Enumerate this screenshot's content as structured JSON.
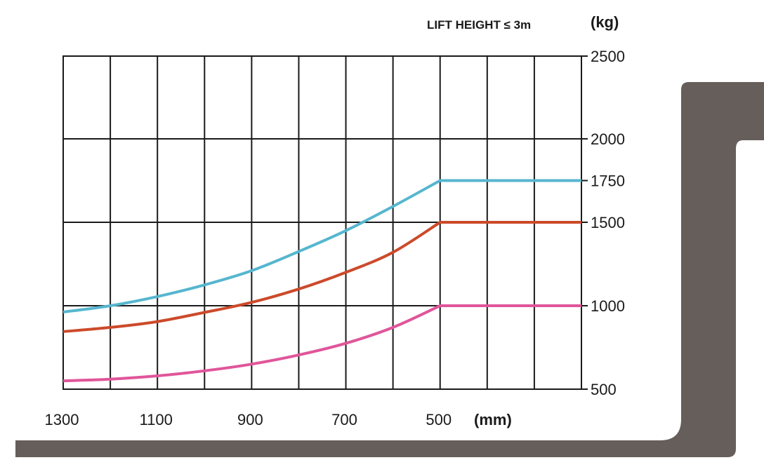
{
  "chart_data": {
    "type": "line",
    "title": "LIFT HEIGHT ≤ 3m",
    "ylabel": "(kg)",
    "xlabel": "(mm)",
    "xlim": [
      1300,
      200
    ],
    "ylim": [
      500,
      2500
    ],
    "y_scale": "piecewise",
    "y_ticks": [
      "500",
      "1000",
      "1500",
      "1750",
      "2000",
      "2500"
    ],
    "x_ticks": [
      "1300",
      "1100",
      "900",
      "700",
      "500"
    ],
    "grid": true,
    "series": [
      {
        "color": "#56b6cf",
        "x": [
          1300,
          1200,
          1100,
          1000,
          900,
          800,
          700,
          600,
          500,
          200
        ],
        "y": [
          962,
          1000,
          1055,
          1125,
          1210,
          1325,
          1450,
          1595,
          1750,
          1750
        ]
      },
      {
        "color": "#cc4a2a",
        "x": [
          1300,
          1200,
          1100,
          1000,
          900,
          800,
          700,
          600,
          500,
          200
        ],
        "y": [
          845,
          870,
          905,
          960,
          1020,
          1100,
          1200,
          1320,
          1500,
          1500
        ]
      },
      {
        "color": "#e0559a",
        "x": [
          1300,
          1200,
          1100,
          1000,
          900,
          800,
          700,
          600,
          500,
          200
        ],
        "y": [
          550,
          560,
          580,
          610,
          650,
          705,
          775,
          870,
          1000,
          1000
        ]
      }
    ]
  },
  "colors": {
    "grid": "#1a1a1a",
    "fork": "#655e5a",
    "background": "#ffffff"
  }
}
